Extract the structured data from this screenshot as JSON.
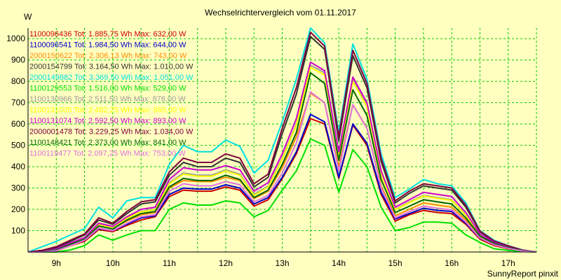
{
  "chart_data": {
    "type": "line",
    "title": "Wechselrichtervergleich vom 01.11.2017",
    "ylabel": "W",
    "footer": "SunnyReport pinxit",
    "ylim": [
      0,
      1050
    ],
    "xlim": [
      8.5,
      17.5
    ],
    "yticks": [
      100,
      200,
      300,
      400,
      500,
      600,
      700,
      800,
      900,
      1000
    ],
    "xticks": [
      {
        "label": "9h",
        "v": 9
      },
      {
        "label": "10h",
        "v": 10
      },
      {
        "label": "11h",
        "v": 11
      },
      {
        "label": "12h",
        "v": 12
      },
      {
        "label": "13h",
        "v": 13
      },
      {
        "label": "14h",
        "v": 14
      },
      {
        "label": "15h",
        "v": 15
      },
      {
        "label": "16h",
        "v": 16
      },
      {
        "label": "17h",
        "v": 17
      }
    ],
    "grid": true,
    "legend_position": "top-left",
    "x": [
      8.5,
      8.75,
      9.0,
      9.25,
      9.5,
      9.75,
      10.0,
      10.25,
      10.5,
      10.75,
      11.0,
      11.25,
      11.5,
      11.75,
      12.0,
      12.25,
      12.5,
      12.75,
      13.0,
      13.25,
      13.5,
      13.75,
      14.0,
      14.25,
      14.5,
      14.75,
      15.0,
      15.25,
      15.5,
      15.75,
      16.0,
      16.25,
      16.5,
      16.75,
      17.0,
      17.25,
      17.5
    ],
    "series": [
      {
        "name": "1100096436",
        "tot": "Tot: 1.885,75 Wh",
        "max": "Max: 632,00 W",
        "color": "#cc0000",
        "values": [
          0,
          0,
          5,
          30,
          50,
          105,
          95,
          125,
          150,
          165,
          260,
          290,
          285,
          285,
          305,
          290,
          215,
          245,
          345,
          460,
          625,
          600,
          345,
          595,
          500,
          270,
          145,
          175,
          195,
          185,
          180,
          130,
          60,
          30,
          15,
          5,
          0
        ]
      },
      {
        "name": "1100096541",
        "tot": "Tot: 1.984,50 Wh",
        "max": "Max: 644,00 W",
        "color": "#0000cc",
        "values": [
          0,
          0,
          8,
          32,
          55,
          110,
          100,
          130,
          160,
          170,
          270,
          300,
          295,
          295,
          315,
          300,
          225,
          255,
          350,
          470,
          645,
          610,
          350,
          600,
          510,
          280,
          155,
          180,
          205,
          195,
          190,
          135,
          65,
          35,
          18,
          5,
          0
        ]
      },
      {
        "name": "2000150622",
        "tot": "Tot: 2.306,13 Wh",
        "max": "Max: 743,00 W",
        "color": "#ff8c00",
        "values": [
          0,
          0,
          10,
          35,
          60,
          120,
          110,
          145,
          175,
          185,
          300,
          335,
          330,
          330,
          350,
          335,
          250,
          285,
          395,
          540,
          745,
          700,
          400,
          690,
          580,
          310,
          170,
          200,
          230,
          220,
          210,
          150,
          72,
          38,
          20,
          6,
          0
        ]
      },
      {
        "name": "2000154799",
        "tot": "Tot: 3.164,50 Wh",
        "max": "Max: 1.010,00 W",
        "color": "#333333",
        "values": [
          0,
          5,
          20,
          50,
          80,
          150,
          130,
          180,
          225,
          235,
          360,
          420,
          400,
          400,
          440,
          420,
          305,
          350,
          555,
          740,
          1010,
          950,
          520,
          920,
          770,
          425,
          230,
          275,
          310,
          300,
          290,
          210,
          95,
          50,
          28,
          8,
          0
        ]
      },
      {
        "name": "2000149882",
        "tot": "Tot: 3.369,50 Wh",
        "max": "Max: 1.051,00 W",
        "color": "#00e0e0",
        "values": [
          0,
          25,
          50,
          80,
          110,
          210,
          160,
          240,
          255,
          255,
          410,
          500,
          470,
          470,
          525,
          495,
          370,
          430,
          610,
          810,
          1050,
          980,
          560,
          975,
          810,
          460,
          255,
          295,
          340,
          320,
          310,
          230,
          100,
          55,
          30,
          10,
          0
        ]
      },
      {
        "name": "1100129553",
        "tot": "Tot: 1.516,00 Wh",
        "max": "Max: 529,00 W",
        "color": "#00e000",
        "values": [
          0,
          0,
          0,
          10,
          30,
          80,
          55,
          80,
          100,
          100,
          200,
          230,
          220,
          220,
          240,
          230,
          165,
          195,
          290,
          380,
          530,
          500,
          280,
          480,
          400,
          210,
          100,
          115,
          140,
          140,
          135,
          80,
          45,
          15,
          8,
          2,
          0
        ]
      },
      {
        "name": "1100130966",
        "tot": "Tot: 2.511,50 Wh",
        "max": "Max: 878,00 W",
        "color": "#999999",
        "values": [
          0,
          0,
          12,
          40,
          65,
          130,
          115,
          160,
          190,
          200,
          325,
          370,
          360,
          360,
          385,
          365,
          270,
          310,
          440,
          600,
          875,
          840,
          460,
          810,
          690,
          370,
          200,
          235,
          265,
          255,
          245,
          175,
          80,
          42,
          22,
          6,
          0
        ]
      },
      {
        "name": "1100131005",
        "tot": "Tot: 2.482,25 Wh",
        "max": "Max: 865,00 W",
        "color": "#ffff00",
        "values": [
          0,
          0,
          12,
          38,
          63,
          128,
          113,
          158,
          188,
          198,
          320,
          365,
          355,
          355,
          380,
          360,
          265,
          305,
          435,
          595,
          865,
          830,
          455,
          800,
          680,
          365,
          198,
          232,
          262,
          252,
          242,
          172,
          78,
          41,
          21,
          6,
          0
        ]
      },
      {
        "name": "1100131074",
        "tot": "Tot: 2.592,50 Wh",
        "max": "Max: 893,00 W",
        "color": "#cc00cc",
        "values": [
          0,
          0,
          15,
          42,
          68,
          135,
          120,
          165,
          200,
          210,
          340,
          395,
          385,
          385,
          405,
          385,
          285,
          325,
          460,
          625,
          890,
          850,
          470,
          820,
          700,
          380,
          210,
          245,
          280,
          270,
          260,
          185,
          85,
          45,
          24,
          7,
          0
        ]
      },
      {
        "name": "2000001478",
        "tot": "Tot: 3.229,25 Wh",
        "max": "Max: 1.034,00 W",
        "color": "#800040",
        "values": [
          0,
          8,
          25,
          55,
          85,
          160,
          135,
          190,
          235,
          245,
          375,
          440,
          420,
          420,
          460,
          440,
          320,
          365,
          580,
          770,
          1030,
          965,
          540,
          945,
          790,
          440,
          240,
          285,
          320,
          310,
          300,
          220,
          98,
          52,
          29,
          9,
          0
        ]
      },
      {
        "name": "1100148421",
        "tot": "Tot: 2.373,00 Wh",
        "max": "Max: 841,00 W",
        "color": "#006600",
        "values": [
          0,
          0,
          10,
          36,
          60,
          122,
          108,
          150,
          180,
          190,
          305,
          345,
          335,
          335,
          360,
          340,
          255,
          290,
          410,
          560,
          840,
          790,
          430,
          760,
          640,
          340,
          185,
          215,
          245,
          235,
          225,
          160,
          75,
          40,
          20,
          6,
          0
        ]
      },
      {
        "name": "1100119477",
        "tot": "Tot: 2.097,25 Wh",
        "max": "Max: 753,00 W",
        "color": "#e070e0",
        "values": [
          0,
          0,
          6,
          30,
          55,
          112,
          100,
          135,
          165,
          175,
          285,
          320,
          310,
          310,
          330,
          315,
          235,
          265,
          370,
          510,
          750,
          700,
          380,
          690,
          580,
          300,
          160,
          190,
          215,
          205,
          198,
          140,
          66,
          34,
          17,
          5,
          0
        ]
      }
    ]
  }
}
